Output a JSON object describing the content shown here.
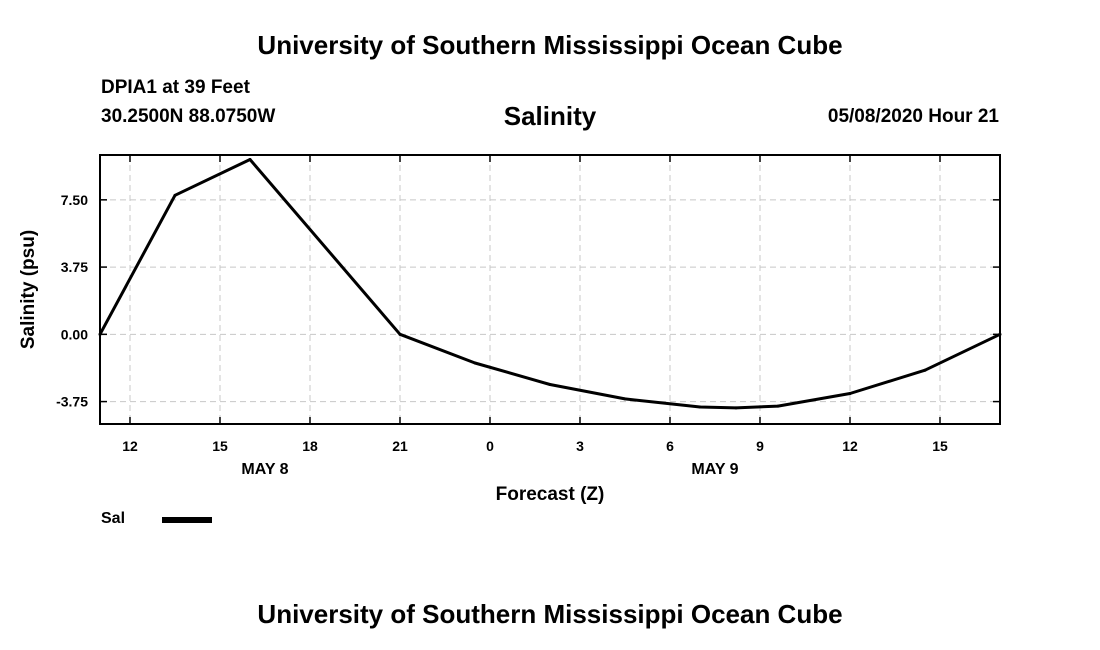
{
  "header": {
    "organization": "University of Southern Mississippi Ocean Cube",
    "station": "DPIA1 at 39 Feet",
    "coordinates": "30.2500N 88.0750W",
    "run_time": "05/08/2020 Hour 21"
  },
  "footer": {
    "organization": "University of Southern Mississippi Ocean Cube"
  },
  "legend": {
    "label": "Sal",
    "color": "#000000"
  },
  "chart_data": {
    "type": "line",
    "title": "Salinity",
    "xlabel": "Forecast (Z)",
    "ylabel": "Salinity (psu)",
    "x_unit": "hours since 05/08/2020 00Z",
    "xlim": [
      11,
      41
    ],
    "ylim": [
      -5,
      10
    ],
    "x_ticks": [
      {
        "x": 12,
        "label": "12"
      },
      {
        "x": 15,
        "label": "15"
      },
      {
        "x": 18,
        "label": "18"
      },
      {
        "x": 21,
        "label": "21"
      },
      {
        "x": 24,
        "label": "0"
      },
      {
        "x": 27,
        "label": "3"
      },
      {
        "x": 30,
        "label": "6"
      },
      {
        "x": 33,
        "label": "9"
      },
      {
        "x": 36,
        "label": "12"
      },
      {
        "x": 39,
        "label": "15"
      }
    ],
    "day_labels": [
      {
        "x": 16.5,
        "label": "MAY 8"
      },
      {
        "x": 31.5,
        "label": "MAY 9"
      }
    ],
    "y_ticks": [
      {
        "y": 7.5,
        "label": "7.50"
      },
      {
        "y": 3.75,
        "label": "3.75"
      },
      {
        "y": 0,
        "label": "0.00"
      },
      {
        "y": -3.75,
        "label": "-3.75"
      }
    ],
    "grid": true,
    "series": [
      {
        "name": "Sal",
        "color": "#000000",
        "x": [
          11,
          13.5,
          16,
          21,
          23.5,
          26,
          28.5,
          31,
          32.2,
          33.6,
          36,
          38.5,
          41
        ],
        "values": [
          0.0,
          7.75,
          9.75,
          0.0,
          -1.6,
          -2.8,
          -3.6,
          -4.05,
          -4.1,
          -4.0,
          -3.3,
          -2.0,
          0.0
        ]
      }
    ]
  }
}
